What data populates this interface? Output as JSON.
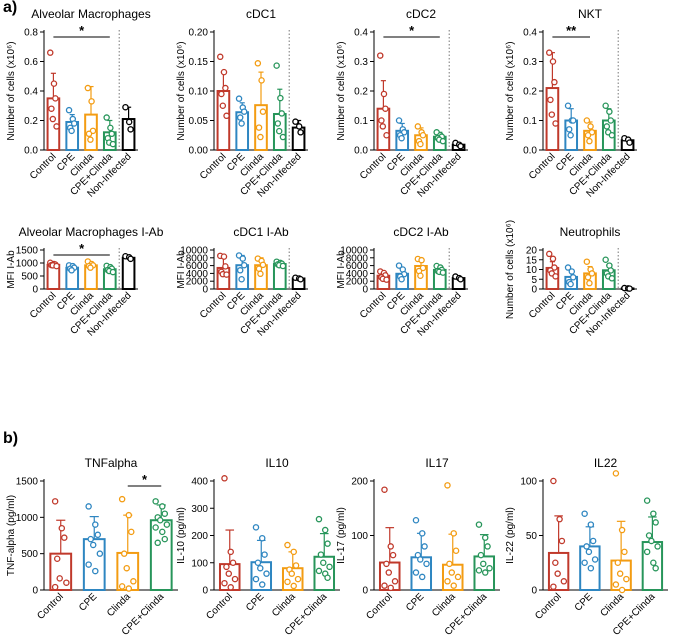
{
  "panel_labels": {
    "a": "a)",
    "b": "b)"
  },
  "colors": {
    "Control": "#c0392b",
    "CPE": "#2e86c1",
    "Clinda": "#f39c12",
    "CPE+Clinda": "#27955a",
    "Non-infected": "#000000"
  },
  "chart_data": [
    {
      "type": "bar",
      "title": "Alveolar Macrophages",
      "ylabel": "Number of cells (x10⁶)",
      "ylim": [
        0,
        0.8
      ],
      "yticks": [
        "0.0",
        "0.2",
        "0.4",
        "0.6",
        "0.8"
      ],
      "categories": [
        "Control",
        "CPE",
        "Clinda",
        "CPE+Clinda",
        "Non-Infected"
      ],
      "values": [
        0.35,
        0.19,
        0.24,
        0.12,
        0.21
      ],
      "err": [
        0.17,
        0.05,
        0.19,
        0.08,
        0.08
      ],
      "points": [
        [
          0.66,
          0.45,
          0.35,
          0.28,
          0.21,
          0.16
        ],
        [
          0.27,
          0.21,
          0.18,
          0.15,
          0.13
        ],
        [
          0.42,
          0.33,
          0.13,
          0.11,
          0.07
        ],
        [
          0.22,
          0.15,
          0.11,
          0.08,
          0.05,
          0.04
        ],
        [
          0.29,
          0.19,
          0.14
        ]
      ],
      "sig": {
        "text": "*",
        "from": 0,
        "to": 3
      }
    },
    {
      "type": "bar",
      "title": "cDC1",
      "ylabel": "Number of cells (x10⁶)",
      "ylim": [
        0,
        0.2
      ],
      "yticks": [
        "0.00",
        "0.05",
        "0.10",
        "0.15",
        "0.20"
      ],
      "categories": [
        "Control",
        "CPE",
        "Clinda",
        "CPE+Clinda",
        "Non-Infected"
      ],
      "values": [
        0.1,
        0.064,
        0.076,
        0.061,
        0.038
      ],
      "err": [
        0.032,
        0.016,
        0.056,
        0.042,
        0.012
      ],
      "points": [
        [
          0.158,
          0.132,
          0.105,
          0.095,
          0.075,
          0.058
        ],
        [
          0.087,
          0.072,
          0.065,
          0.055,
          0.045
        ],
        [
          0.147,
          0.118,
          0.065,
          0.038,
          0.022
        ],
        [
          0.143,
          0.088,
          0.062,
          0.045,
          0.032,
          0.022
        ],
        [
          0.048,
          0.04,
          0.03
        ]
      ]
    },
    {
      "type": "bar",
      "title": "cDC2",
      "ylabel": "Number of cells (x10⁶)",
      "ylim": [
        0,
        0.4
      ],
      "yticks": [
        "0.0",
        "0.1",
        "0.2",
        "0.3",
        "0.4"
      ],
      "categories": [
        "Control",
        "CPE",
        "Clinda",
        "CPE+Clinda",
        "Non-Infected"
      ],
      "values": [
        0.14,
        0.065,
        0.05,
        0.045,
        0.018
      ],
      "err": [
        0.095,
        0.025,
        0.025,
        0.015,
        0.006
      ],
      "points": [
        [
          0.32,
          0.19,
          0.14,
          0.1,
          0.08,
          0.05
        ],
        [
          0.1,
          0.07,
          0.06,
          0.05,
          0.04
        ],
        [
          0.08,
          0.06,
          0.05,
          0.03,
          0.02
        ],
        [
          0.06,
          0.05,
          0.045,
          0.04,
          0.035,
          0.03
        ],
        [
          0.024,
          0.018,
          0.013
        ]
      ],
      "sig": {
        "text": "*",
        "from": 0,
        "to": 3
      }
    },
    {
      "type": "bar",
      "title": "NKT",
      "ylabel": "Number of cells (x10⁶)",
      "ylim": [
        0,
        0.4
      ],
      "yticks": [
        "0.0",
        "0.1",
        "0.2",
        "0.3",
        "0.4"
      ],
      "categories": [
        "Control",
        "CPE",
        "Clinda",
        "CPE+Clinda",
        "Non-Infected"
      ],
      "values": [
        0.21,
        0.1,
        0.065,
        0.1,
        0.033
      ],
      "err": [
        0.12,
        0.04,
        0.03,
        0.04,
        0.008
      ],
      "points": [
        [
          0.33,
          0.3,
          0.23,
          0.17,
          0.12,
          0.09
        ],
        [
          0.15,
          0.1,
          0.1,
          0.07,
          0.05
        ],
        [
          0.1,
          0.08,
          0.06,
          0.05,
          0.03
        ],
        [
          0.15,
          0.13,
          0.1,
          0.08,
          0.06,
          0.05
        ],
        [
          0.04,
          0.035,
          0.025
        ]
      ],
      "sig": {
        "text": "**",
        "from": 0,
        "to": 2
      }
    },
    {
      "type": "bar",
      "title": "Alveolar Macrophages I-Ab",
      "ylabel": "MFI I-Ab",
      "ylim": [
        0,
        1500
      ],
      "yticks": [
        "0",
        "500",
        "1000",
        "1500"
      ],
      "categories": [
        "Control",
        "CPE",
        "Clinda",
        "CPE+Clinda",
        "Non-Infected"
      ],
      "values": [
        930,
        820,
        910,
        760,
        1200
      ],
      "err": [
        80,
        80,
        130,
        110,
        70
      ],
      "points": [
        [
          1010,
          960,
          940,
          920,
          910,
          880
        ],
        [
          910,
          880,
          820,
          780,
          720
        ],
        [
          1060,
          960,
          910,
          880,
          820
        ],
        [
          890,
          840,
          780,
          730,
          690,
          650
        ],
        [
          1260,
          1220,
          1160
        ]
      ],
      "sig": {
        "text": "*",
        "from": 0,
        "to": 3
      }
    },
    {
      "type": "bar",
      "title": "cDC1 I-Ab",
      "ylabel": "MFI I-Ab",
      "ylim": [
        0,
        10000
      ],
      "yticks": [
        "0",
        "2000",
        "4000",
        "6000",
        "8000",
        "10000"
      ],
      "categories": [
        "Control",
        "CPE",
        "Clinda",
        "CPE+Clinda",
        "Non-Infected"
      ],
      "values": [
        5400,
        6100,
        6100,
        6400,
        2700
      ],
      "err": [
        2500,
        2500,
        1900,
        600,
        200
      ],
      "points": [
        [
          8500,
          8300,
          5800,
          4400,
          3800,
          3700
        ],
        [
          8600,
          7800,
          6100,
          4800,
          2500
        ],
        [
          7800,
          7200,
          6200,
          5200,
          3900
        ],
        [
          7000,
          6700,
          6500,
          6300,
          6100,
          5900
        ],
        [
          2900,
          2700,
          2500
        ]
      ]
    },
    {
      "type": "bar",
      "title": "cDC2 I-Ab",
      "ylabel": "MFI I-Ab",
      "ylim": [
        0,
        10000
      ],
      "yticks": [
        "0",
        "2000",
        "4000",
        "6000",
        "8000",
        "10000"
      ],
      "categories": [
        "Control",
        "CPE",
        "Clinda",
        "CPE+Clinda",
        "Non-Infected"
      ],
      "values": [
        3400,
        3900,
        5900,
        4900,
        2800
      ],
      "err": [
        900,
        1500,
        1900,
        800,
        350
      ],
      "points": [
        [
          4500,
          4100,
          3500,
          3000,
          2600,
          2400
        ],
        [
          6000,
          5000,
          3800,
          3200,
          2500
        ],
        [
          7700,
          7400,
          5400,
          4600,
          3400
        ],
        [
          5900,
          5500,
          4900,
          4600,
          4400,
          4200
        ],
        [
          3200,
          2800,
          2500
        ]
      ]
    },
    {
      "type": "bar",
      "title": "Neutrophils",
      "ylabel": "Number of cells (x10⁶)",
      "ylim": [
        0,
        20
      ],
      "yticks": [
        "0",
        "5",
        "10",
        "15",
        "20"
      ],
      "categories": [
        "Control",
        "CPE",
        "Clinda",
        "CPE+Clinda",
        "Non-Infected"
      ],
      "values": [
        10.8,
        6.2,
        8.0,
        9.6,
        0.3
      ],
      "err": [
        3.2,
        3.5,
        3.5,
        2.6,
        0.1
      ],
      "points": [
        [
          18,
          15.5,
          11,
          9.5,
          8,
          6.5
        ],
        [
          11,
          9,
          6,
          3.5,
          2.5
        ],
        [
          14,
          10,
          8,
          6,
          3
        ],
        [
          15,
          12,
          9.5,
          8,
          6.5,
          5.5
        ],
        [
          0.5,
          0.3,
          0.2
        ]
      ]
    },
    {
      "type": "bar",
      "title": "TNFalpha",
      "ylabel": "TNF-alpha (pg/ml)",
      "ylim": [
        0,
        1500
      ],
      "yticks": [
        "0",
        "500",
        "1000",
        "1500"
      ],
      "categories": [
        "Control",
        "CPE",
        "Clinda",
        "CPE+Clinda"
      ],
      "values": [
        500,
        700,
        510,
        960
      ],
      "err": [
        460,
        310,
        520,
        210
      ],
      "points": [
        [
          1220,
          850,
          720,
          430,
          160,
          100,
          40
        ],
        [
          1150,
          900,
          760,
          700,
          620,
          500,
          350,
          260
        ],
        [
          1250,
          1030,
          800,
          500,
          300,
          120,
          50,
          20
        ],
        [
          1220,
          1150,
          1050,
          1000,
          960,
          900,
          860,
          800,
          700,
          650
        ]
      ],
      "sig": {
        "text": "*",
        "from": 2,
        "to": 3
      }
    },
    {
      "type": "bar",
      "title": "IL10",
      "ylabel": "IL-10 (pg/ml)",
      "ylim": [
        0,
        400
      ],
      "yticks": [
        "0",
        "100",
        "200",
        "300",
        "400"
      ],
      "categories": [
        "Control",
        "CPE",
        "Clinda",
        "CPE+Clinda"
      ],
      "values": [
        95,
        102,
        80,
        122
      ],
      "err": [
        125,
        80,
        60,
        85
      ],
      "points": [
        [
          410,
          140,
          100,
          85,
          60,
          40,
          25,
          10
        ],
        [
          230,
          190,
          130,
          100,
          80,
          60,
          40,
          20
        ],
        [
          165,
          140,
          90,
          75,
          60,
          40,
          30,
          15
        ],
        [
          260,
          220,
          170,
          130,
          100,
          85,
          70,
          60,
          45
        ]
      ]
    },
    {
      "type": "bar",
      "title": "IL17",
      "ylabel": "IL-17 (pg/ml)",
      "ylim": [
        0,
        250
      ],
      "yticks": [
        "0",
        "100",
        "200"
      ],
      "categories": [
        "Control",
        "CPE",
        "Clinda",
        "CPE+Clinda"
      ],
      "values": [
        63,
        75,
        58,
        77
      ],
      "err": [
        80,
        55,
        70,
        50
      ],
      "points": [
        [
          230,
          100,
          80,
          60,
          40,
          20,
          10,
          5
        ],
        [
          160,
          130,
          100,
          80,
          70,
          60,
          40,
          30
        ],
        [
          240,
          130,
          90,
          60,
          40,
          30,
          20,
          10
        ],
        [
          150,
          120,
          100,
          80,
          60,
          50,
          45,
          40
        ]
      ]
    },
    {
      "type": "bar",
      "title": "IL22",
      "ylabel": "IL-22 (pg/ml)",
      "ylim": [
        0,
        100
      ],
      "yticks": [
        "0",
        "50",
        "100"
      ],
      "categories": [
        "Control",
        "CPE",
        "Clinda",
        "CPE+Clinda"
      ],
      "values": [
        34,
        40,
        27,
        44
      ],
      "err": [
        34,
        18,
        36,
        23
      ],
      "points": [
        [
          100,
          65,
          45,
          25,
          15,
          8,
          3
        ],
        [
          70,
          60,
          45,
          40,
          35,
          28,
          25,
          20
        ],
        [
          107,
          55,
          35,
          25,
          15,
          10,
          5,
          0
        ],
        [
          82,
          70,
          62,
          50,
          45,
          40,
          35,
          25,
          20
        ]
      ]
    }
  ]
}
